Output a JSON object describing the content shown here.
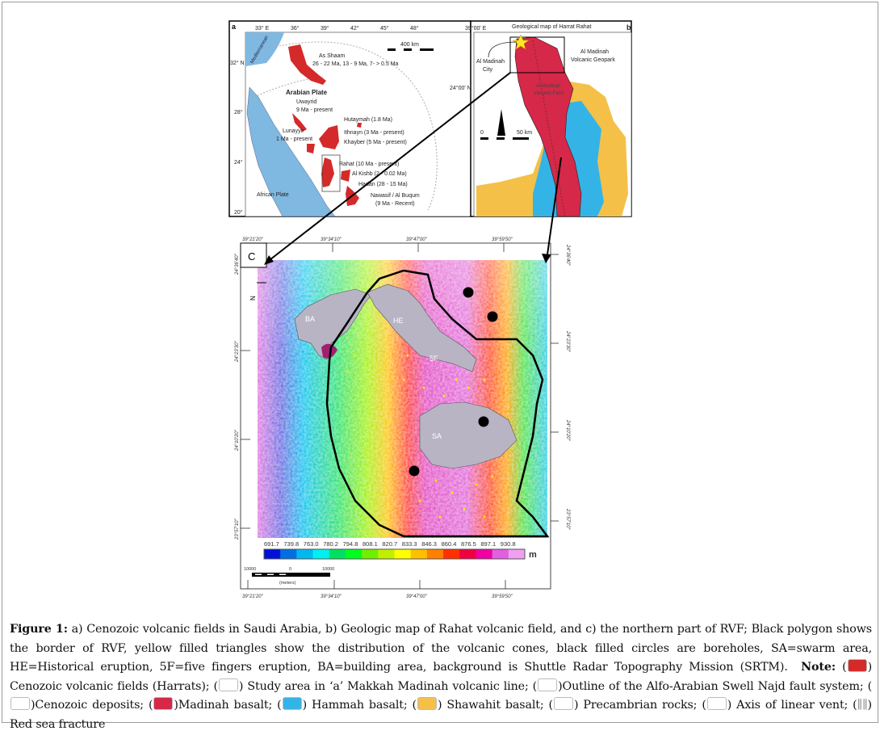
{
  "panel_a": {
    "label": "a",
    "lon_ticks": [
      "33° E",
      "36°",
      "39°",
      "42°",
      "45°",
      "48°"
    ],
    "lat_ticks": [
      "32° N",
      "28°",
      "24°",
      "20°"
    ],
    "scale": "400 km",
    "sea_label": "Mediterranean",
    "plate_label": "Arabian Plate",
    "african_plate": "African Plate",
    "fields": [
      {
        "name": "As Shaam",
        "age": "26 - 22 Ma, 13 - 9 Ma, 7- > 0.5 Ma"
      },
      {
        "name": "Uwayrid",
        "age": "9 Ma - present"
      },
      {
        "name": "Hutaymah (1.8 Ma)"
      },
      {
        "name": "Lunayyir",
        "age": "1 Ma - present"
      },
      {
        "name": "Ithnayn (3 Ma - present)"
      },
      {
        "name": "Khayber (5 Ma - present)"
      },
      {
        "name": "Rahat (10 Ma - present)"
      },
      {
        "name": "Al Kishb (2 - 0.02 Ma)"
      },
      {
        "name": "Hadan (28 - 15 Ma)"
      },
      {
        "name": "Nawasif / Al Buqum",
        "age": "(9 Ma - Recent)"
      }
    ]
  },
  "panel_b": {
    "label": "b",
    "title": "Geological map of Harrat Rahat",
    "lon_tick": "39°00' E",
    "lat_tick": "24°00' N",
    "city": [
      "Al Madinah",
      "City"
    ],
    "geopark": [
      "Al Madinah",
      "Volcanic Geopark"
    ],
    "field": [
      "Al Madinah",
      "Volcanic Field"
    ],
    "scale_start": "0",
    "scale_end": "50 km",
    "north": "N"
  },
  "panel_c": {
    "label": "C",
    "lon_ticks": [
      "39°21'20\"",
      "39°34'10\"",
      "39°47'00\"",
      "39°59'50\""
    ],
    "lat_ticks": [
      "24°36'40\"",
      "24°23'30\"",
      "24°10'20\"",
      "23°57'10\""
    ],
    "areas": [
      "BA",
      "HE",
      "5F",
      "SA"
    ],
    "north": "N",
    "colorbar_ticks": [
      "691.7",
      "739.8",
      "763.0",
      "780.2",
      "794.8",
      "808.1",
      "820.7",
      "833.3",
      "846.3",
      "860.4",
      "876.5",
      "897.1",
      "930.8"
    ],
    "colorbar_unit": "m",
    "colorbar_colors": [
      "#0010d8",
      "#0070e0",
      "#00b8f0",
      "#00f0f0",
      "#00e060",
      "#00ff20",
      "#70f000",
      "#c0f000",
      "#ffff00",
      "#ffc000",
      "#ff8000",
      "#ff3000",
      "#f00040",
      "#f000a0",
      "#e060e0",
      "#f0a0f0"
    ],
    "scale_ticks": [
      "10000",
      "0",
      "10000"
    ],
    "scale_unit": "(meters)"
  },
  "caption": {
    "figure_label": "Figure 1:",
    "text": "a) Cenozoic volcanic fields in Saudi Arabia, b) Geologic map of Rahat volcanic field, and c) the northern part of RVF; Black polygon shows the border of RVF, yellow filled triangles show the distribution of the volcanic cones, black filled circles are boreholes, SA=swarm area, HE=Historical eruption, 5F=five fingers eruption, BA=building area, background is Shuttle Radar Topography Mission (SRTM).",
    "note_label": "Note:",
    "legend": [
      {
        "text": ") Cenozoic volcanic fields (Harrats); (",
        "color": "#d42a2a"
      },
      {
        "text": ") Study area in ‘a’  Makkah Madinah volcanic line; (",
        "color": "#ffffff"
      },
      {
        "text": ")Outline of the Alfo-Arabian Swell Najd fault system; (",
        "color": "#ffffff"
      },
      {
        "text": ")Cenozoic deposits; (",
        "color": "#ffffff"
      },
      {
        "text": ")Madinah basalt; (",
        "color": "#d62848"
      },
      {
        "text": ") Hammah basalt; (",
        "color": "#34b4e6"
      },
      {
        "text": ") Shawahit basalt; (",
        "color": "#f4c048"
      },
      {
        "text": ") Precambrian rocks; (",
        "color": "#ffffff"
      },
      {
        "text": ") Axis of linear vent; (",
        "color": "#ffffff"
      },
      {
        "text": ") Red sea fracture",
        "color": ""
      }
    ]
  }
}
